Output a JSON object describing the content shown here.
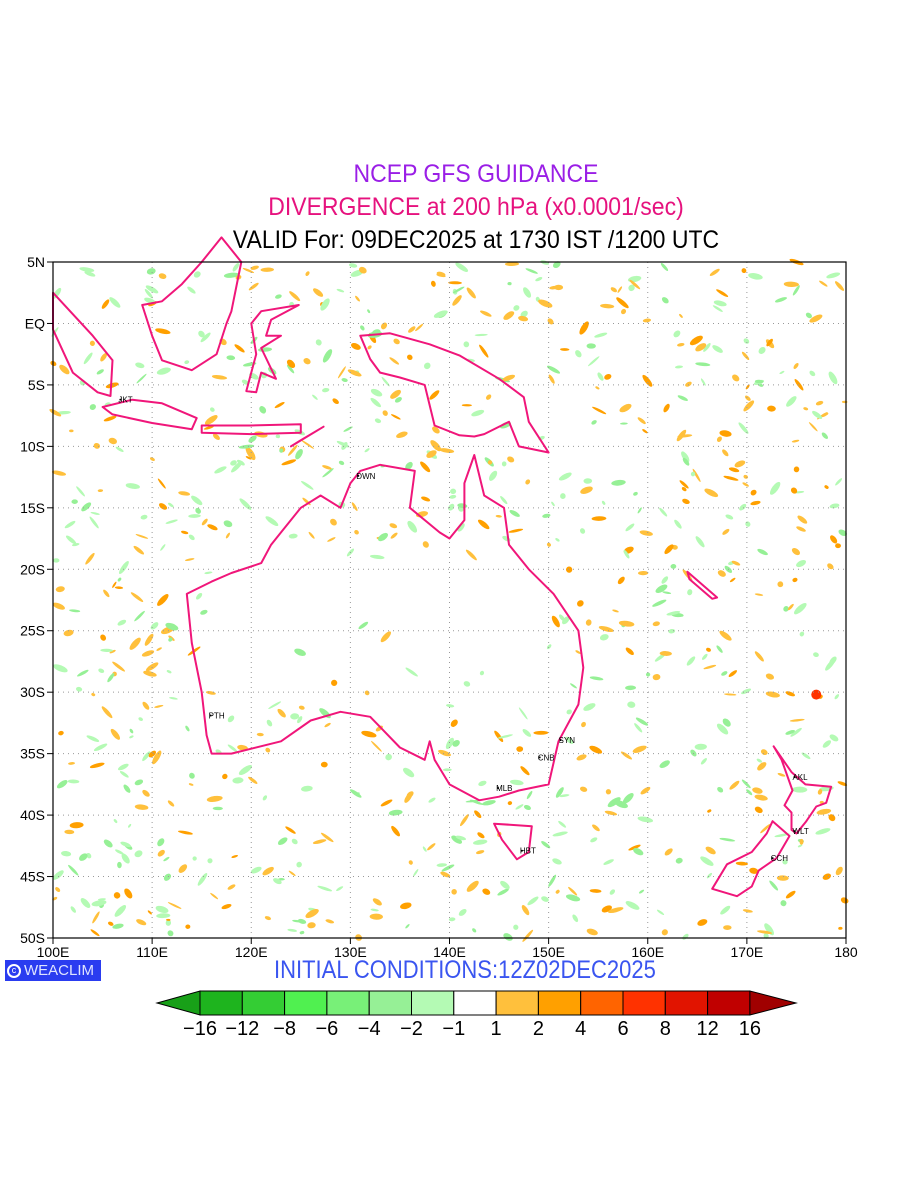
{
  "header": {
    "line1": "NCEP GFS GUIDANCE",
    "line2": "DIVERGENCE at 200 hPa (x0.0001/sec)",
    "line3": "VALID For: 09DEC2025 at 1730 IST /1200 UTC"
  },
  "footer": {
    "logo": "WEACLIM",
    "initial_conditions": "INITIAL CONDITIONS:12Z02DEC2025"
  },
  "map": {
    "lon_range": [
      100,
      180
    ],
    "lat_range": [
      -50,
      5
    ],
    "lon_labels": [
      "100E",
      "110E",
      "120E",
      "130E",
      "140E",
      "150E",
      "160E",
      "170E",
      "180"
    ],
    "lat_labels": [
      "5N",
      "EQ",
      "5S",
      "10S",
      "15S",
      "20S",
      "25S",
      "30S",
      "35S",
      "40S",
      "45S",
      "50S"
    ],
    "coast_color": "#f0167a",
    "cities": [
      {
        "name": "JKT",
        "lon": 106.8,
        "lat": -6.2
      },
      {
        "name": "DWN",
        "lon": 130.8,
        "lat": -12.4
      },
      {
        "name": "PTH",
        "lon": 115.9,
        "lat": -31.9
      },
      {
        "name": "SYN",
        "lon": 151.2,
        "lat": -33.9
      },
      {
        "name": "CNB",
        "lon": 149.1,
        "lat": -35.3
      },
      {
        "name": "MLB",
        "lon": 144.9,
        "lat": -37.8
      },
      {
        "name": "HBT",
        "lon": 147.3,
        "lat": -42.9
      },
      {
        "name": "AKL",
        "lon": 174.8,
        "lat": -36.9
      },
      {
        "name": "WLT",
        "lon": 174.8,
        "lat": -41.3
      },
      {
        "name": "CCH",
        "lon": 172.6,
        "lat": -43.5
      }
    ]
  },
  "colorbar": {
    "labels": [
      "−16",
      "−12",
      "−8",
      "−6",
      "−4",
      "−2",
      "−1",
      "1",
      "2",
      "4",
      "6",
      "8",
      "12",
      "16"
    ],
    "low_arrow_color": "#18a018",
    "high_arrow_color": "#a00000",
    "colors": [
      "#1eb41e",
      "#34cd34",
      "#50f050",
      "#78f078",
      "#96f096",
      "#b4fab4",
      "#ffffff",
      "#ffc03c",
      "#ffa000",
      "#ff6400",
      "#ff3200",
      "#e11400",
      "#c00000"
    ]
  }
}
